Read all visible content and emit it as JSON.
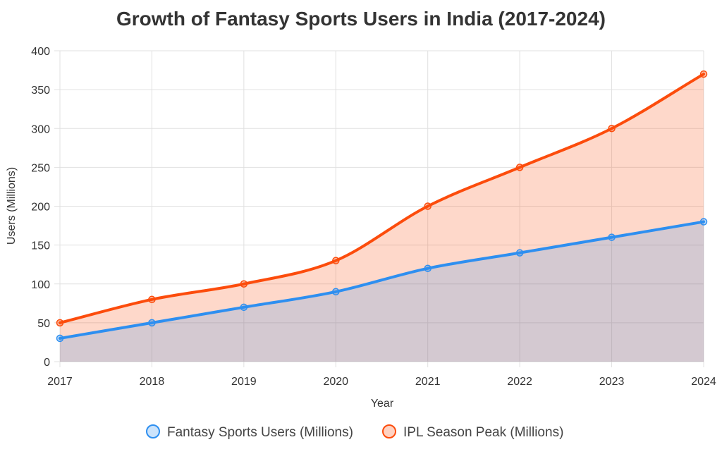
{
  "chart_data": {
    "type": "area",
    "title": "Growth of Fantasy Sports Users in India (2017-2024)",
    "xlabel": "Year",
    "ylabel": "Users (Millions)",
    "categories": [
      "2017",
      "2018",
      "2019",
      "2020",
      "2021",
      "2022",
      "2023",
      "2024"
    ],
    "ylim": [
      0,
      400
    ],
    "yticks": [
      "0",
      "50",
      "100",
      "150",
      "200",
      "250",
      "300",
      "350",
      "400"
    ],
    "grid": true,
    "legend_position": "bottom",
    "series": [
      {
        "name": "Fantasy Sports Users (Millions)",
        "values": [
          30,
          50,
          70,
          90,
          120,
          140,
          160,
          180
        ],
        "color": "#2e8ff0",
        "fill": "#2e8ff0"
      },
      {
        "name": "IPL Season Peak (Millions)",
        "values": [
          50,
          80,
          100,
          130,
          200,
          250,
          300,
          370
        ],
        "color": "#fc4c0c",
        "fill": "#fc4c0c"
      }
    ]
  }
}
